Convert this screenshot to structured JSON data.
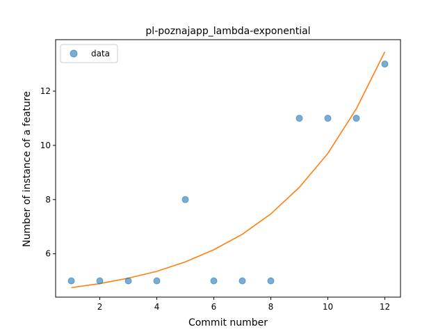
{
  "chart_data": {
    "type": "scatter",
    "title": "pl-poznajapp_lambda-exponential",
    "xlabel": "Commit number",
    "ylabel": "Number of instance of a feature",
    "xlim": [
      0.45,
      12.55
    ],
    "ylim": [
      4.4,
      13.9
    ],
    "xticks": [
      2,
      4,
      6,
      8,
      10,
      12
    ],
    "yticks": [
      6,
      8,
      10,
      12
    ],
    "grid": false,
    "legend": {
      "position": "top-left",
      "entries": [
        "data"
      ]
    },
    "series": [
      {
        "name": "data",
        "kind": "scatter",
        "color": "#1f77b4",
        "x": [
          1,
          2,
          3,
          4,
          5,
          6,
          7,
          8,
          9,
          10,
          11,
          12
        ],
        "y": [
          5,
          5,
          5,
          5,
          8,
          5,
          5,
          5,
          11,
          11,
          11,
          13
        ]
      },
      {
        "kind": "line",
        "color": "#ff7f0e",
        "x": [
          1,
          2,
          3,
          4,
          5,
          6,
          7,
          8,
          9,
          10,
          11,
          12
        ],
        "y": [
          4.75,
          4.9,
          5.1,
          5.35,
          5.7,
          6.15,
          6.72,
          7.47,
          8.45,
          9.7,
          11.35,
          13.45
        ]
      }
    ]
  }
}
